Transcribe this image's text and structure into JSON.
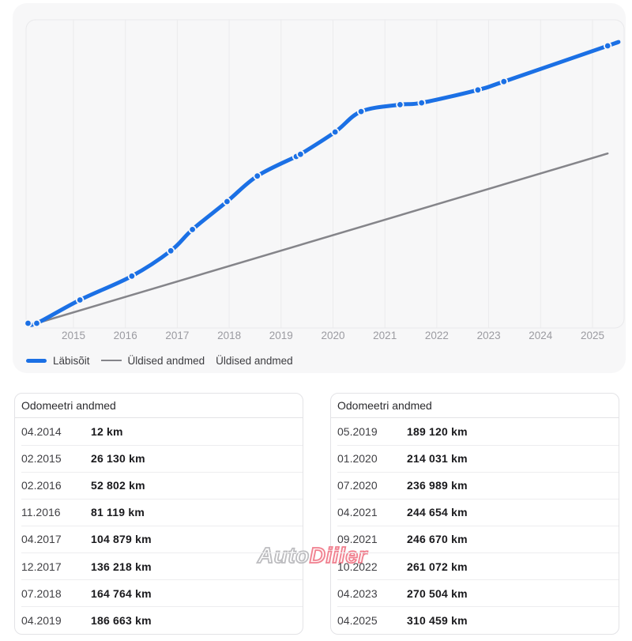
{
  "chart_data": {
    "type": "line",
    "title": "",
    "xlabel": "",
    "ylabel": "",
    "x_ticks": [
      "2015",
      "2016",
      "2017",
      "2018",
      "2019",
      "2020",
      "2021",
      "2022",
      "2023",
      "2024",
      "2025"
    ],
    "ylim": [
      0,
      320000
    ],
    "grid": "vertical",
    "legend_position": "bottom-left",
    "series": [
      {
        "name": "Läbisõit",
        "color": "#1b70e5",
        "width": 5,
        "markers": true,
        "points": [
          {
            "date": "02.2014",
            "km": 0,
            "marker": true
          },
          {
            "date": "04.2014",
            "km": 12,
            "marker": true
          },
          {
            "date": "02.2015",
            "km": 26130,
            "marker": true
          },
          {
            "date": "02.2016",
            "km": 52802,
            "marker": true
          },
          {
            "date": "11.2016",
            "km": 81119,
            "marker": true
          },
          {
            "date": "04.2017",
            "km": 104879,
            "marker": true
          },
          {
            "date": "12.2017",
            "km": 136218,
            "marker": true
          },
          {
            "date": "07.2018",
            "km": 164764,
            "marker": true
          },
          {
            "date": "04.2019",
            "km": 186663,
            "marker": true
          },
          {
            "date": "05.2019",
            "km": 189120,
            "marker": true
          },
          {
            "date": "01.2020",
            "km": 214031,
            "marker": true
          },
          {
            "date": "07.2020",
            "km": 236989,
            "marker": true
          },
          {
            "date": "04.2021",
            "km": 244654,
            "marker": true
          },
          {
            "date": "09.2021",
            "km": 246670,
            "marker": true
          },
          {
            "date": "10.2022",
            "km": 261072,
            "marker": true
          },
          {
            "date": "04.2023",
            "km": 270504,
            "marker": true
          },
          {
            "date": "04.2025",
            "km": 310459,
            "marker": true
          },
          {
            "date": "06.2025",
            "km": 314000,
            "marker": false
          }
        ]
      },
      {
        "name": "Üldised andmed",
        "color": "#85858a",
        "width": 2.5,
        "markers": false,
        "points": [
          {
            "date": "04.2014",
            "km": 0,
            "marker": false
          },
          {
            "date": "04.2025",
            "km": 190000,
            "marker": false
          }
        ]
      }
    ]
  },
  "legend": [
    {
      "label": "Läbisõit",
      "swatch": "blue-line"
    },
    {
      "label": "Üldised andmed",
      "swatch": "gray-line"
    },
    {
      "label": "Üldised andmed",
      "swatch": "none"
    }
  ],
  "tables": [
    {
      "title": "Odomeetri andmed",
      "rows": [
        {
          "date": "04.2014",
          "value": "12 km"
        },
        {
          "date": "02.2015",
          "value": "26 130 km"
        },
        {
          "date": "02.2016",
          "value": "52 802 km"
        },
        {
          "date": "11.2016",
          "value": "81 119 km"
        },
        {
          "date": "04.2017",
          "value": "104 879 km"
        },
        {
          "date": "12.2017",
          "value": "136 218 km"
        },
        {
          "date": "07.2018",
          "value": "164 764 km"
        },
        {
          "date": "04.2019",
          "value": "186 663 km"
        }
      ]
    },
    {
      "title": "Odomeetri andmed",
      "rows": [
        {
          "date": "05.2019",
          "value": "189 120 km"
        },
        {
          "date": "01.2020",
          "value": "214 031 km"
        },
        {
          "date": "07.2020",
          "value": "236 989 km"
        },
        {
          "date": "04.2021",
          "value": "244 654 km"
        },
        {
          "date": "09.2021",
          "value": "246 670 km"
        },
        {
          "date": "10.2022",
          "value": "261 072 km"
        },
        {
          "date": "04.2023",
          "value": "270 504 km"
        },
        {
          "date": "04.2025",
          "value": "310 459 km"
        }
      ]
    }
  ],
  "watermark": {
    "part1": "Auto",
    "part2": "Diiler"
  },
  "colors": {
    "accent_blue": "#1b70e5",
    "line_gray": "#85858a",
    "card_bg": "#f7f7f8",
    "grid": "#ebebed",
    "watermark_pink": "#f0808f"
  }
}
